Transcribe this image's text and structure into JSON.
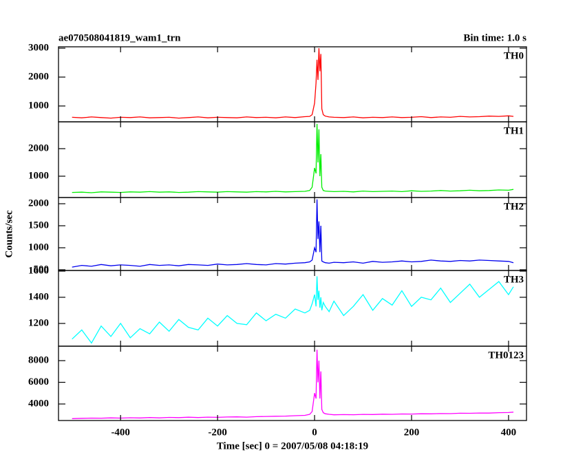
{
  "header": {
    "title": "ae070508041819_wam1_trn",
    "bin_time": "Bin time: 1.0 s",
    "ylabel": "Counts/sec"
  },
  "chart_data": [
    {
      "type": "line",
      "title": "TH0",
      "x": [
        -500,
        -480,
        -460,
        -440,
        -420,
        -400,
        -380,
        -360,
        -340,
        -320,
        -300,
        -280,
        -260,
        -240,
        -220,
        -200,
        -180,
        -160,
        -140,
        -120,
        -100,
        -80,
        -60,
        -40,
        -20,
        -10,
        -5,
        0,
        3,
        5,
        7,
        9,
        11,
        13,
        15,
        18,
        22,
        30,
        40,
        60,
        80,
        100,
        120,
        140,
        160,
        180,
        200,
        220,
        240,
        260,
        280,
        300,
        320,
        340,
        360,
        380,
        400,
        410
      ],
      "series": [
        {
          "name": "TH0",
          "color": "#ff0000",
          "values": [
            610,
            590,
            620,
            600,
            580,
            610,
            600,
            620,
            590,
            600,
            610,
            580,
            600,
            620,
            590,
            610,
            600,
            590,
            620,
            600,
            610,
            590,
            620,
            600,
            630,
            640,
            700,
            1100,
            1800,
            2600,
            1900,
            3000,
            2200,
            2800,
            900,
            700,
            650,
            620,
            610,
            600,
            620,
            590,
            610,
            600,
            620,
            600,
            610,
            630,
            600,
            620,
            610,
            640,
            620,
            630,
            650,
            640,
            660,
            640
          ]
        }
      ],
      "xlim": [
        -528,
        437
      ],
      "xticks": [
        -400,
        -200,
        0,
        200,
        400
      ],
      "ylim": [
        452,
        3048
      ],
      "yticks": [
        1000,
        2000,
        3000
      ]
    },
    {
      "type": "line",
      "title": "TH1",
      "x": [
        -500,
        -480,
        -460,
        -440,
        -420,
        -400,
        -380,
        -360,
        -340,
        -320,
        -300,
        -280,
        -260,
        -240,
        -220,
        -200,
        -180,
        -160,
        -140,
        -120,
        -100,
        -80,
        -60,
        -40,
        -20,
        -10,
        -5,
        0,
        3,
        5,
        7,
        9,
        11,
        13,
        15,
        18,
        22,
        30,
        40,
        60,
        80,
        100,
        120,
        140,
        160,
        180,
        200,
        220,
        240,
        260,
        280,
        300,
        320,
        340,
        360,
        380,
        400,
        410
      ],
      "series": [
        {
          "name": "TH1",
          "color": "#00ee00",
          "values": [
            410,
            420,
            400,
            430,
            420,
            410,
            430,
            420,
            440,
            420,
            430,
            410,
            420,
            440,
            430,
            420,
            440,
            430,
            420,
            440,
            430,
            450,
            430,
            440,
            450,
            480,
            600,
            1300,
            1100,
            2900,
            1500,
            2700,
            1000,
            1800,
            600,
            480,
            460,
            450,
            440,
            450,
            430,
            460,
            440,
            450,
            460,
            440,
            470,
            450,
            460,
            480,
            460,
            470,
            490,
            470,
            480,
            500,
            490,
            520
          ]
        }
      ],
      "xlim": [
        -528,
        437
      ],
      "xticks": [
        -400,
        -200,
        0,
        200,
        400
      ],
      "ylim": [
        225,
        2975
      ],
      "yticks": [
        1000,
        2000
      ]
    },
    {
      "type": "line",
      "title": "TH2",
      "x": [
        -500,
        -480,
        -460,
        -440,
        -420,
        -400,
        -380,
        -360,
        -340,
        -320,
        -300,
        -280,
        -260,
        -240,
        -220,
        -200,
        -180,
        -160,
        -140,
        -120,
        -100,
        -80,
        -60,
        -40,
        -20,
        -10,
        -5,
        0,
        3,
        5,
        7,
        9,
        11,
        13,
        15,
        18,
        22,
        30,
        40,
        60,
        80,
        100,
        120,
        140,
        160,
        180,
        200,
        220,
        240,
        260,
        280,
        300,
        320,
        340,
        360,
        380,
        400,
        410
      ],
      "series": [
        {
          "name": "TH2",
          "color": "#0000ee",
          "values": [
            560,
            600,
            580,
            620,
            590,
            610,
            600,
            580,
            620,
            600,
            610,
            590,
            620,
            610,
            600,
            630,
            610,
            620,
            640,
            620,
            610,
            640,
            630,
            650,
            660,
            680,
            720,
            1000,
            900,
            2100,
            1200,
            1600,
            900,
            1500,
            700,
            680,
            660,
            650,
            670,
            660,
            680,
            650,
            690,
            670,
            680,
            700,
            680,
            690,
            720,
            700,
            690,
            710,
            700,
            720,
            710,
            700,
            690,
            660
          ]
        }
      ],
      "xlim": [
        -528,
        437
      ],
      "xticks": [
        -400,
        -200,
        0,
        200,
        400
      ],
      "ylim": [
        484,
        2141
      ],
      "yticks": [
        500,
        1000,
        1500,
        2000
      ]
    },
    {
      "type": "line",
      "title": "TH3",
      "x": [
        -500,
        -480,
        -460,
        -440,
        -420,
        -400,
        -380,
        -360,
        -340,
        -320,
        -300,
        -280,
        -260,
        -240,
        -220,
        -200,
        -180,
        -160,
        -140,
        -120,
        -100,
        -80,
        -60,
        -40,
        -20,
        -10,
        -5,
        0,
        3,
        5,
        7,
        9,
        11,
        13,
        15,
        18,
        22,
        30,
        40,
        60,
        80,
        100,
        120,
        140,
        160,
        180,
        200,
        220,
        240,
        260,
        280,
        300,
        320,
        340,
        360,
        380,
        400,
        410
      ],
      "series": [
        {
          "name": "TH3",
          "color": "#00ffff",
          "values": [
            1080,
            1150,
            1050,
            1180,
            1100,
            1200,
            1090,
            1160,
            1120,
            1210,
            1140,
            1230,
            1170,
            1150,
            1240,
            1180,
            1260,
            1200,
            1190,
            1280,
            1220,
            1270,
            1240,
            1310,
            1280,
            1300,
            1350,
            1420,
            1330,
            1560,
            1380,
            1450,
            1320,
            1400,
            1300,
            1360,
            1330,
            1290,
            1370,
            1260,
            1330,
            1420,
            1300,
            1390,
            1340,
            1450,
            1330,
            1400,
            1380,
            1470,
            1360,
            1430,
            1500,
            1400,
            1460,
            1520,
            1420,
            1480
          ]
        }
      ],
      "xlim": [
        -528,
        437
      ],
      "xticks": [
        -400,
        -200,
        0,
        200,
        400
      ],
      "ylim": [
        1026,
        1605
      ],
      "yticks": [
        1200,
        1400,
        1600
      ]
    },
    {
      "type": "line",
      "title": "TH0123",
      "x": [
        -500,
        -480,
        -460,
        -440,
        -420,
        -400,
        -380,
        -360,
        -340,
        -320,
        -300,
        -280,
        -260,
        -240,
        -220,
        -200,
        -180,
        -160,
        -140,
        -120,
        -100,
        -80,
        -60,
        -40,
        -20,
        -10,
        -5,
        0,
        3,
        5,
        7,
        9,
        11,
        13,
        15,
        18,
        22,
        30,
        40,
        60,
        80,
        100,
        120,
        140,
        160,
        180,
        200,
        220,
        240,
        260,
        280,
        300,
        320,
        340,
        360,
        380,
        400,
        410
      ],
      "series": [
        {
          "name": "TH0123",
          "color": "#ff00ff",
          "values": [
            2650,
            2680,
            2700,
            2690,
            2720,
            2700,
            2730,
            2710,
            2750,
            2720,
            2760,
            2740,
            2780,
            2750,
            2790,
            2770,
            2800,
            2810,
            2790,
            2830,
            2850,
            2870,
            2880,
            2920,
            2950,
            3050,
            3300,
            5000,
            4500,
            9000,
            6000,
            8000,
            4500,
            7000,
            3500,
            3200,
            3100,
            3050,
            3000,
            3020,
            3010,
            3040,
            3030,
            3060,
            3050,
            3080,
            3070,
            3100,
            3090,
            3120,
            3110,
            3150,
            3140,
            3170,
            3160,
            3200,
            3210,
            3250
          ]
        }
      ],
      "xlim": [
        -528,
        437
      ],
      "xticks": [
        -400,
        -200,
        0,
        200,
        400
      ],
      "ylim": [
        2476,
        9333
      ],
      "yticks": [
        4000,
        6000,
        8000
      ],
      "xlabel": "Time [sec] 0 = 2007/05/08 04:18:19"
    }
  ]
}
